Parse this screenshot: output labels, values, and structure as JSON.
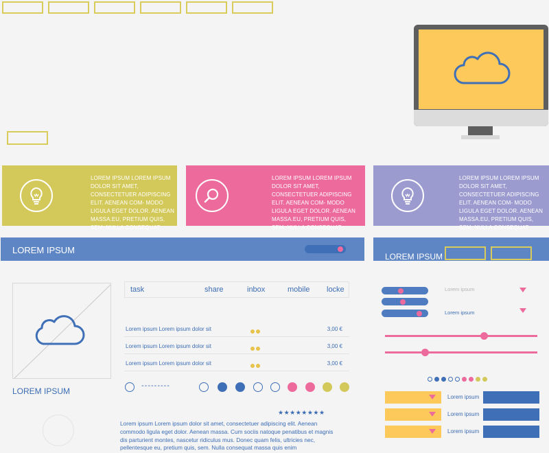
{
  "top_nav": {
    "buttons": [
      "",
      "",
      "",
      "",
      "",
      ""
    ]
  },
  "cards": [
    {
      "icon": "lightbulb-icon",
      "color": "#d3c85a",
      "text": "LOREM IPSUM LOREM IPSUM DOLOR SIT AMET, CONSECTETUER ADIPISCING ELIT. AENEAN COM- MODO LIGULA EGET DOLOR. AENEAN MASSA.EU, PRETIUM QUIS, SEM. NULLA CONSEQUAT"
    },
    {
      "icon": "search-icon",
      "color": "#ed6b9c",
      "text": "LOREM IPSUM LOREM IPSUM DOLOR SIT AMET, CONSECTETUER ADIPISCING ELIT. AENEAN COM- MODO LIGULA EGET DOLOR. AENEAN MASSA.EU, PRETIUM QUIS, SEM. NULLA CONSEQUAT"
    },
    {
      "icon": "lightbulb-icon",
      "color": "#9b9bd0",
      "text": "LOREM IPSUM LOREM IPSUM DOLOR SIT AMET, CONSECTETUER ADIPISCING ELIT. AENEAN COM- MODO LIGULA EGET DOLOR. AENEAN MASSA.EU, PRETIUM QUIS, SEM. NULLA CONSEQUAT"
    }
  ],
  "bar_left": {
    "title": "LOREM IPSUM"
  },
  "bar_right": {
    "title": "LOREM IPSUM"
  },
  "image_panel": {
    "caption": "LOREM IPSUM"
  },
  "tabs": [
    "task",
    "share",
    "inbox",
    "mobile",
    "locke"
  ],
  "rows": [
    {
      "desc": "Lorem ipsum Lorem ipsum dolor sit",
      "price": "3,00 €"
    },
    {
      "desc": "Lorem ipsum Lorem ipsum dolor sit",
      "price": "3,00 €"
    },
    {
      "desc": "Lorem ipsum Lorem ipsum dolor sit",
      "price": "3,00 €"
    }
  ],
  "pager": {
    "dashes": "---------"
  },
  "rating": {
    "stars": "★★★★★★★★"
  },
  "paragraph": "Lorem ipsum Lorem ipsum dolor sit amet, consectetuer adipiscing elit. Aenean commodo ligula eget dolor. Aenean massa. Cum sociis natoque penatibus et magnis dis parturient montes, nascetur ridiculus mus. Donec quam felis, ultricies nec, pellentesque eu, pretium quis, sem. Nulla consequat massa quis enim",
  "dropdowns": [
    {
      "label": "Lorem ipsum"
    },
    {
      "label": "Lorem ipsum"
    }
  ],
  "toggles": [
    {
      "value": 0.4
    },
    {
      "value": 0.45
    },
    {
      "value": 0.85
    }
  ],
  "sliders": [
    {
      "value": 0.66
    },
    {
      "value": 0.25
    }
  ],
  "select_list": [
    {
      "label": "Lorem ipsum"
    },
    {
      "label": "Lorem ipsum"
    },
    {
      "label": "Lorem ipsum"
    }
  ],
  "colors": {
    "yellow": "#fdc95a",
    "pink": "#ed6b9c",
    "blue": "#3e6fb7",
    "olive": "#d3c85a",
    "lavender": "#9b9bd0"
  }
}
